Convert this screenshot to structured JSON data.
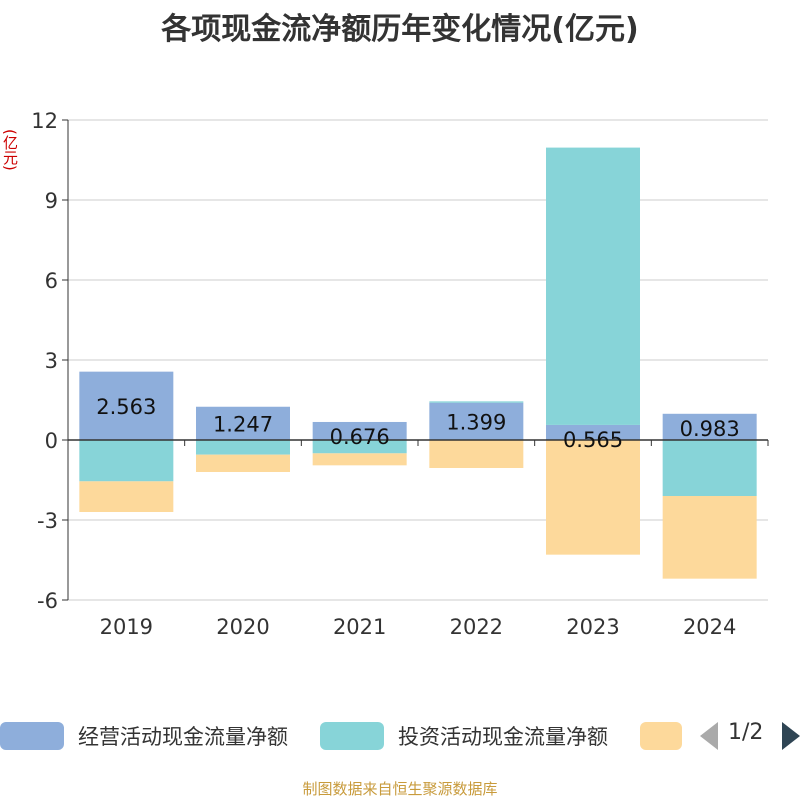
{
  "chart_data": {
    "type": "bar",
    "stacked": true,
    "title": "各项现金流净额历年变化情况(亿元)",
    "ylabel": "(亿元)",
    "ylim": [
      -6,
      12
    ],
    "yticks": [
      -6,
      -3,
      0,
      3,
      6,
      9,
      12
    ],
    "grid": true,
    "categories": [
      "2019",
      "2020",
      "2021",
      "2022",
      "2023",
      "2024"
    ],
    "series": [
      {
        "name": "经营活动现金流量净额",
        "color": "#8eaedb",
        "values": [
          2.563,
          1.247,
          0.676,
          1.399,
          0.565,
          0.983
        ],
        "labels": [
          "2.563",
          "1.247",
          "0.676",
          "1.399",
          "0.565",
          "0.983"
        ]
      },
      {
        "name": "投资活动现金流量净额",
        "color": "#87d4d8",
        "values": [
          -1.55,
          -0.55,
          -0.5,
          0.05,
          10.4,
          -2.1
        ]
      },
      {
        "name": "",
        "color": "#fdd99b",
        "values": [
          -1.15,
          -0.65,
          -0.45,
          -1.05,
          -4.3,
          -3.1
        ]
      }
    ],
    "legend_position": "bottom"
  },
  "legend": {
    "items": [
      {
        "label": "经营活动现金流量净额",
        "color": "#8eaedb"
      },
      {
        "label": "投资活动现金流量净额",
        "color": "#87d4d8"
      },
      {
        "label": "",
        "color": "#fdd99b"
      }
    ],
    "page": "1/2"
  },
  "source": "制图数据来自恒生聚源数据库"
}
